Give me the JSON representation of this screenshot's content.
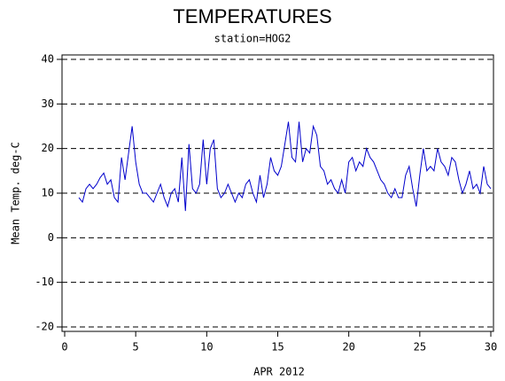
{
  "chart_data": {
    "type": "line",
    "title": "TEMPERATURES",
    "subtitle": "station=HOG2",
    "x_label": "APR 2012",
    "y_label": "Mean Temp. deg-C",
    "x": [
      1,
      1.25,
      1.5,
      1.75,
      2,
      2.25,
      2.5,
      2.75,
      3,
      3.25,
      3.5,
      3.75,
      4,
      4.25,
      4.5,
      4.75,
      5,
      5.25,
      5.5,
      5.75,
      6,
      6.25,
      6.5,
      6.75,
      7,
      7.25,
      7.5,
      7.75,
      8,
      8.25,
      8.5,
      8.75,
      9,
      9.25,
      9.5,
      9.75,
      10,
      10.25,
      10.5,
      10.75,
      11,
      11.25,
      11.5,
      11.75,
      12,
      12.25,
      12.5,
      12.75,
      13,
      13.25,
      13.5,
      13.75,
      14,
      14.25,
      14.5,
      14.75,
      15,
      15.25,
      15.5,
      15.75,
      16,
      16.25,
      16.5,
      16.75,
      17,
      17.25,
      17.5,
      17.75,
      18,
      18.25,
      18.5,
      18.75,
      19,
      19.25,
      19.5,
      19.75,
      20,
      20.25,
      20.5,
      20.75,
      21,
      21.25,
      21.5,
      21.75,
      22,
      22.25,
      22.5,
      22.75,
      23,
      23.25,
      23.5,
      23.75,
      24,
      24.25,
      24.5,
      24.75,
      25,
      25.25,
      25.5,
      25.75,
      26,
      26.25,
      26.5,
      26.75,
      27,
      27.25,
      27.5,
      27.75,
      28,
      28.25,
      28.5,
      28.75,
      29,
      29.25,
      29.5,
      29.75,
      30
    ],
    "series": [
      {
        "name": "Mean Temp",
        "color": "#0000cc",
        "values": [
          9,
          8,
          11,
          12,
          11,
          12,
          13.5,
          14.5,
          12,
          13,
          9,
          8,
          18,
          13,
          19,
          25,
          17,
          12,
          10,
          10,
          9,
          8,
          10,
          12,
          9,
          7,
          10,
          11,
          8,
          18,
          6,
          21,
          11,
          10,
          12,
          22,
          12,
          20,
          22,
          11,
          9,
          10,
          12,
          10,
          8,
          10,
          9,
          12,
          13,
          10,
          8,
          14,
          9,
          12,
          18,
          15,
          14,
          16,
          21,
          26,
          18,
          17,
          26,
          17,
          20,
          19,
          25,
          23,
          16,
          15,
          12,
          13,
          11,
          10,
          13,
          10,
          17,
          18,
          15,
          17,
          16,
          20,
          18,
          17,
          15,
          13,
          12,
          10,
          9,
          11,
          9,
          9,
          14,
          16,
          11,
          7,
          14,
          20,
          15,
          16,
          15,
          20,
          17,
          16,
          14,
          18,
          17,
          13,
          10,
          12,
          15,
          11,
          12,
          10,
          16,
          12,
          11
        ]
      }
    ],
    "xlim": [
      0,
      30
    ],
    "xticks": [
      0,
      5,
      10,
      15,
      20,
      25,
      30
    ],
    "ylim": [
      -20,
      40
    ],
    "yticks": [
      -20,
      -10,
      0,
      10,
      20,
      30,
      40
    ],
    "grid": true
  }
}
